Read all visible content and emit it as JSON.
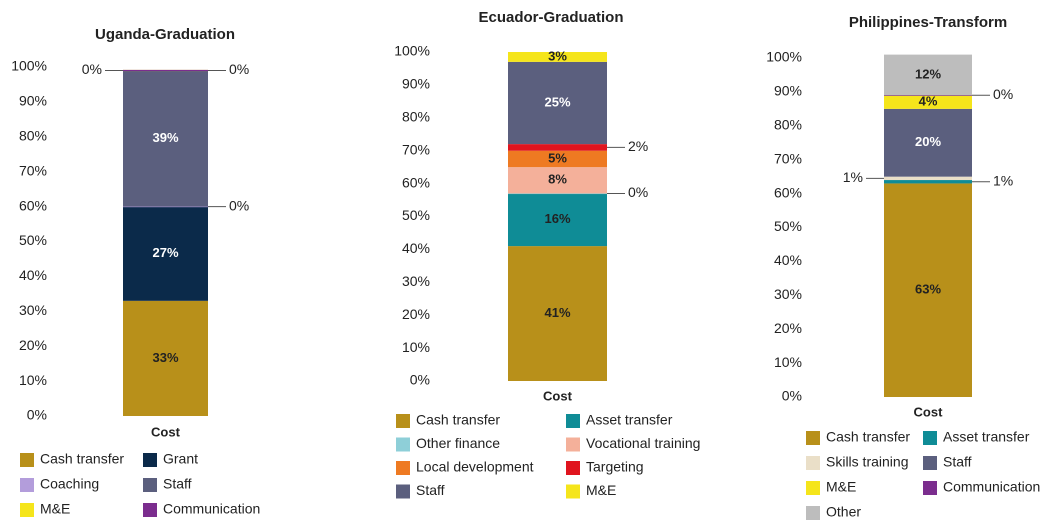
{
  "chart_data": [
    {
      "type": "bar",
      "stacked": true,
      "title": "Uganda-Graduation",
      "categories": [
        "Cost"
      ],
      "ylim": [
        0,
        100
      ],
      "yticks": [
        {
          "value": 0,
          "label": "0%"
        },
        {
          "value": 10,
          "label": "10%"
        },
        {
          "value": 20,
          "label": "20%"
        },
        {
          "value": 30,
          "label": "30%"
        },
        {
          "value": 40,
          "label": "40%"
        },
        {
          "value": 50,
          "label": "50%"
        },
        {
          "value": 60,
          "label": "60%"
        },
        {
          "value": 70,
          "label": "70%"
        },
        {
          "value": 80,
          "label": "80%"
        },
        {
          "value": 90,
          "label": "90%"
        },
        {
          "value": 100,
          "label": "100%"
        }
      ],
      "series": [
        {
          "name": "Cash transfer",
          "color": "#b8901a",
          "values": [
            33
          ],
          "value_labels": [
            "33%"
          ]
        },
        {
          "name": "Grant",
          "color": "#0b2a4a",
          "values": [
            27
          ],
          "value_labels": [
            "27%"
          ]
        },
        {
          "name": "Coaching",
          "color": "#b39ddb",
          "values": [
            0
          ],
          "value_labels": [
            "0%"
          ]
        },
        {
          "name": "Staff",
          "color": "#5b5f7e",
          "values": [
            39
          ],
          "value_labels": [
            "39%"
          ]
        },
        {
          "name": "M&E",
          "color": "#f5e51b",
          "values": [
            0
          ],
          "value_labels": [
            "0%"
          ]
        },
        {
          "name": "Communication",
          "color": "#7b2d8e",
          "values": [
            0
          ],
          "value_labels": [
            "0%"
          ]
        }
      ]
    },
    {
      "type": "bar",
      "stacked": true,
      "title": "Ecuador-Graduation",
      "categories": [
        "Cost"
      ],
      "ylim": [
        0,
        100
      ],
      "yticks": [
        {
          "value": 0,
          "label": "0%"
        },
        {
          "value": 10,
          "label": "10%"
        },
        {
          "value": 20,
          "label": "20%"
        },
        {
          "value": 30,
          "label": "30%"
        },
        {
          "value": 40,
          "label": "40%"
        },
        {
          "value": 50,
          "label": "50%"
        },
        {
          "value": 60,
          "label": "60%"
        },
        {
          "value": 70,
          "label": "70%"
        },
        {
          "value": 80,
          "label": "80%"
        },
        {
          "value": 90,
          "label": "90%"
        },
        {
          "value": 100,
          "label": "100%"
        }
      ],
      "series": [
        {
          "name": "Cash transfer",
          "color": "#b8901a",
          "values": [
            41
          ],
          "value_labels": [
            "41%"
          ]
        },
        {
          "name": "Asset transfer",
          "color": "#0f8c96",
          "values": [
            16
          ],
          "value_labels": [
            "16%"
          ]
        },
        {
          "name": "Other finance",
          "color": "#8ecfd8",
          "values": [
            0
          ],
          "value_labels": [
            "0%"
          ]
        },
        {
          "name": "Vocational training",
          "color": "#f4b09a",
          "values": [
            8
          ],
          "value_labels": [
            "8%"
          ]
        },
        {
          "name": "Local development",
          "color": "#ee7a22",
          "values": [
            5
          ],
          "value_labels": [
            "5%"
          ]
        },
        {
          "name": "Targeting",
          "color": "#e0141e",
          "values": [
            2
          ],
          "value_labels": [
            "2%"
          ]
        },
        {
          "name": "Staff",
          "color": "#5b5f7e",
          "values": [
            25
          ],
          "value_labels": [
            "25%"
          ]
        },
        {
          "name": "M&E",
          "color": "#f5e51b",
          "values": [
            3
          ],
          "value_labels": [
            "3%"
          ]
        }
      ]
    },
    {
      "type": "bar",
      "stacked": true,
      "title": "Philippines-Transform",
      "categories": [
        "Cost"
      ],
      "ylim": [
        0,
        100
      ],
      "yticks": [
        {
          "value": 0,
          "label": "0%"
        },
        {
          "value": 10,
          "label": "10%"
        },
        {
          "value": 20,
          "label": "20%"
        },
        {
          "value": 30,
          "label": "30%"
        },
        {
          "value": 40,
          "label": "40%"
        },
        {
          "value": 50,
          "label": "50%"
        },
        {
          "value": 60,
          "label": "60%"
        },
        {
          "value": 70,
          "label": "70%"
        },
        {
          "value": 80,
          "label": "80%"
        },
        {
          "value": 90,
          "label": "90%"
        },
        {
          "value": 100,
          "label": "100%"
        }
      ],
      "series": [
        {
          "name": "Cash transfer",
          "color": "#b8901a",
          "values": [
            63
          ],
          "value_labels": [
            "63%"
          ]
        },
        {
          "name": "Asset transfer",
          "color": "#0f8c96",
          "values": [
            1
          ],
          "value_labels": [
            "1%"
          ]
        },
        {
          "name": "Skills training",
          "color": "#eadfc8",
          "values": [
            1
          ],
          "value_labels": [
            "1%"
          ]
        },
        {
          "name": "Staff",
          "color": "#5b5f7e",
          "values": [
            20
          ],
          "value_labels": [
            "20%"
          ]
        },
        {
          "name": "M&E",
          "color": "#f5e51b",
          "values": [
            4
          ],
          "value_labels": [
            "4%"
          ]
        },
        {
          "name": "Communication",
          "color": "#7b2d8e",
          "values": [
            0
          ],
          "value_labels": [
            "0%"
          ]
        },
        {
          "name": "Other",
          "color": "#bdbdbd",
          "values": [
            12
          ],
          "value_labels": [
            "12%"
          ]
        }
      ]
    }
  ]
}
